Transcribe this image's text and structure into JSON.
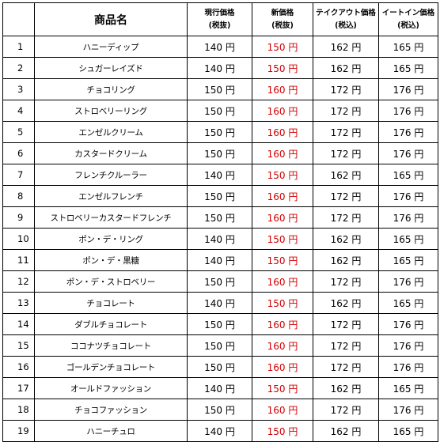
{
  "header": {
    "name": "商品名",
    "current": [
      "現行価格",
      "(税抜)"
    ],
    "new": [
      "新価格",
      "(税抜)"
    ],
    "takeout": [
      "テイクアウト価格",
      "(税込)"
    ],
    "eatin": [
      "イートイン価格",
      "(税込)"
    ]
  },
  "colors": {
    "new_price": "#d10000",
    "text": "#000000",
    "border": "#000000"
  },
  "rows": [
    {
      "no": "1",
      "name": "ハニーディップ",
      "current": "140 円",
      "new": "150 円",
      "takeout": "162 円",
      "eatin": "165 円"
    },
    {
      "no": "2",
      "name": "シュガーレイズド",
      "current": "140 円",
      "new": "150 円",
      "takeout": "162 円",
      "eatin": "165 円"
    },
    {
      "no": "3",
      "name": "チョコリング",
      "current": "150 円",
      "new": "160 円",
      "takeout": "172 円",
      "eatin": "176 円"
    },
    {
      "no": "4",
      "name": "ストロベリーリング",
      "current": "150 円",
      "new": "160 円",
      "takeout": "172 円",
      "eatin": "176 円"
    },
    {
      "no": "5",
      "name": "エンゼルクリーム",
      "current": "150 円",
      "new": "160 円",
      "takeout": "172 円",
      "eatin": "176 円"
    },
    {
      "no": "6",
      "name": "カスタードクリーム",
      "current": "150 円",
      "new": "160 円",
      "takeout": "172 円",
      "eatin": "176 円"
    },
    {
      "no": "7",
      "name": "フレンチクルーラー",
      "current": "140 円",
      "new": "150 円",
      "takeout": "162 円",
      "eatin": "165 円"
    },
    {
      "no": "8",
      "name": "エンゼルフレンチ",
      "current": "150 円",
      "new": "160 円",
      "takeout": "172 円",
      "eatin": "176 円"
    },
    {
      "no": "9",
      "name": "ストロベリーカスタードフレンチ",
      "current": "150 円",
      "new": "160 円",
      "takeout": "172 円",
      "eatin": "176 円"
    },
    {
      "no": "10",
      "name": "ポン・デ・リング",
      "current": "140 円",
      "new": "150 円",
      "takeout": "162 円",
      "eatin": "165 円"
    },
    {
      "no": "11",
      "name": "ポン・デ・黒糖",
      "current": "140 円",
      "new": "150 円",
      "takeout": "162 円",
      "eatin": "165 円"
    },
    {
      "no": "12",
      "name": "ポン・デ・ストロベリー",
      "current": "150 円",
      "new": "160 円",
      "takeout": "172 円",
      "eatin": "176 円"
    },
    {
      "no": "13",
      "name": "チョコレート",
      "current": "140 円",
      "new": "150 円",
      "takeout": "162 円",
      "eatin": "165 円"
    },
    {
      "no": "14",
      "name": "ダブルチョコレート",
      "current": "150 円",
      "new": "160 円",
      "takeout": "172 円",
      "eatin": "176 円"
    },
    {
      "no": "15",
      "name": "ココナツチョコレート",
      "current": "150 円",
      "new": "160 円",
      "takeout": "172 円",
      "eatin": "176 円"
    },
    {
      "no": "16",
      "name": "ゴールデンチョコレート",
      "current": "150 円",
      "new": "160 円",
      "takeout": "172 円",
      "eatin": "176 円"
    },
    {
      "no": "17",
      "name": "オールドファッション",
      "current": "140 円",
      "new": "150 円",
      "takeout": "162 円",
      "eatin": "165 円"
    },
    {
      "no": "18",
      "name": "チョコファッション",
      "current": "150 円",
      "new": "160 円",
      "takeout": "172 円",
      "eatin": "176 円"
    },
    {
      "no": "19",
      "name": "ハニーチュロ",
      "current": "140 円",
      "new": "150 円",
      "takeout": "162 円",
      "eatin": "165 円"
    }
  ]
}
